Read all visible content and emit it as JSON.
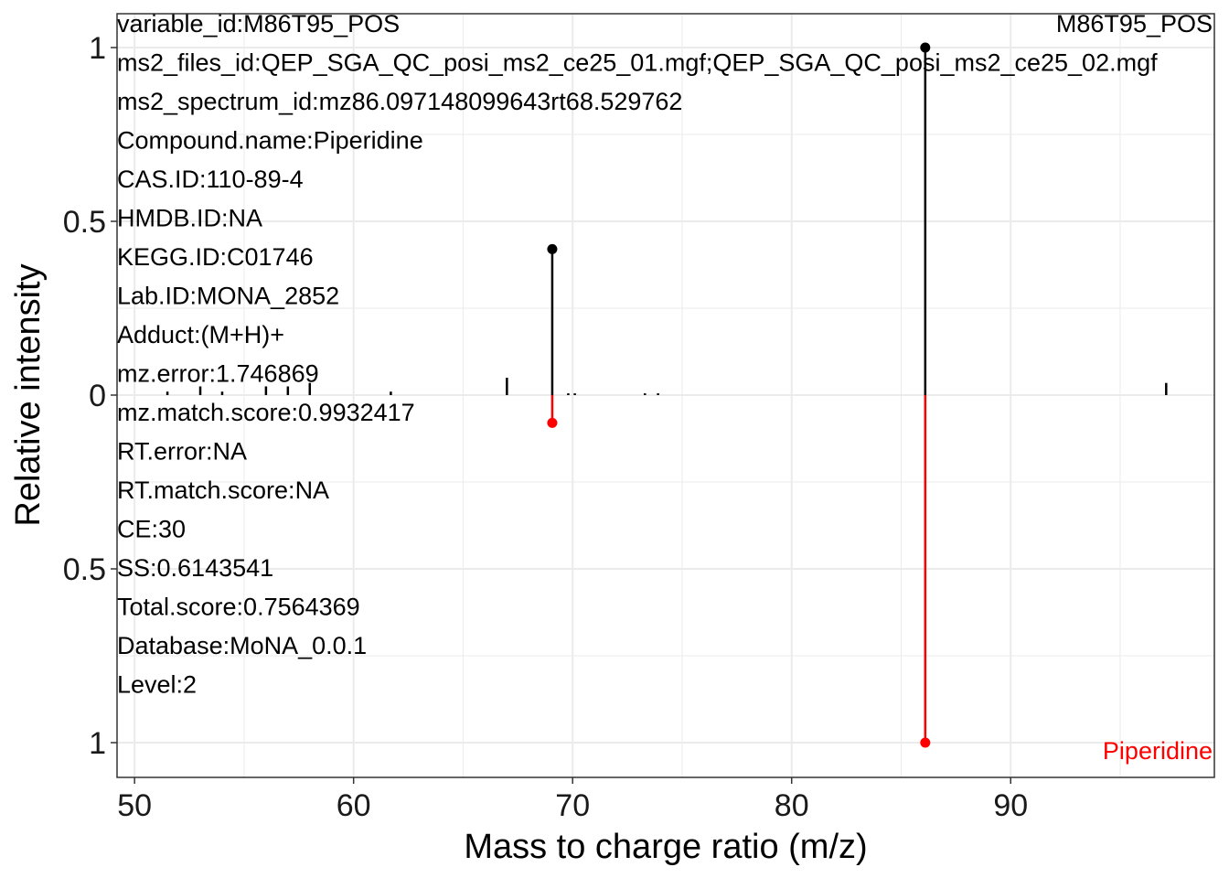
{
  "chart_data": {
    "type": "mirror_spectrum",
    "xlabel": "Mass to charge ratio (m/z)",
    "ylabel": "Relative intensity",
    "xlim": [
      49.2,
      99.3
    ],
    "x_ticks": [
      50,
      60,
      70,
      80,
      90
    ],
    "ylim_top": [
      0,
      1.1
    ],
    "ylim_bottom": [
      0,
      1.1
    ],
    "y_ticks_top": [
      {
        "v": 1,
        "label": "1"
      },
      {
        "v": 0.5,
        "label": "0.5"
      },
      {
        "v": 0,
        "label": "0"
      }
    ],
    "y_ticks_bottom": [
      {
        "v": 0.5,
        "label": "0.5"
      },
      {
        "v": 1,
        "label": "1"
      }
    ],
    "grid": true,
    "top_label": "M86T95_POS",
    "bottom_label": "Piperidine",
    "colors": {
      "experimental": "#000000",
      "reference": "#ff0000",
      "grid": "#ebebeb",
      "border": "#333333"
    },
    "experimental": [
      {
        "mz": 51.5,
        "intensity": 0.01
      },
      {
        "mz": 53.0,
        "intensity": 0.025
      },
      {
        "mz": 54.0,
        "intensity": 0.01
      },
      {
        "mz": 56.0,
        "intensity": 0.025
      },
      {
        "mz": 57.0,
        "intensity": 0.025
      },
      {
        "mz": 58.0,
        "intensity": 0.035
      },
      {
        "mz": 61.7,
        "intensity": 0.01
      },
      {
        "mz": 67.0,
        "intensity": 0.05
      },
      {
        "mz": 69.07,
        "intensity": 0.42,
        "matched": true
      },
      {
        "mz": 69.8,
        "intensity": 0.005
      },
      {
        "mz": 70.1,
        "intensity": 0.005
      },
      {
        "mz": 73.3,
        "intensity": 0.005
      },
      {
        "mz": 73.9,
        "intensity": 0.005
      },
      {
        "mz": 86.1,
        "intensity": 1.0,
        "matched": true
      },
      {
        "mz": 97.1,
        "intensity": 0.035
      }
    ],
    "reference": [
      {
        "mz": 69.07,
        "intensity": 0.08
      },
      {
        "mz": 86.1,
        "intensity": 1.0
      }
    ]
  },
  "info_lines": [
    "variable_id:M86T95_POS",
    "ms2_files_id:QEP_SGA_QC_posi_ms2_ce25_01.mgf;QEP_SGA_QC_posi_ms2_ce25_02.mgf",
    "ms2_spectrum_id:mz86.097148099643rt68.529762",
    "Compound.name:Piperidine",
    "CAS.ID:110-89-4",
    "HMDB.ID:NA",
    "KEGG.ID:C01746",
    "Lab.ID:MONA_2852",
    "Adduct:(M+H)+",
    "mz.error:1.746869",
    "mz.match.score:0.9932417",
    "RT.error:NA",
    "RT.match.score:NA",
    "CE:30",
    "SS:0.6143541",
    "Total.score:0.7564369",
    "Database:MoNA_0.0.1",
    "Level:2"
  ]
}
